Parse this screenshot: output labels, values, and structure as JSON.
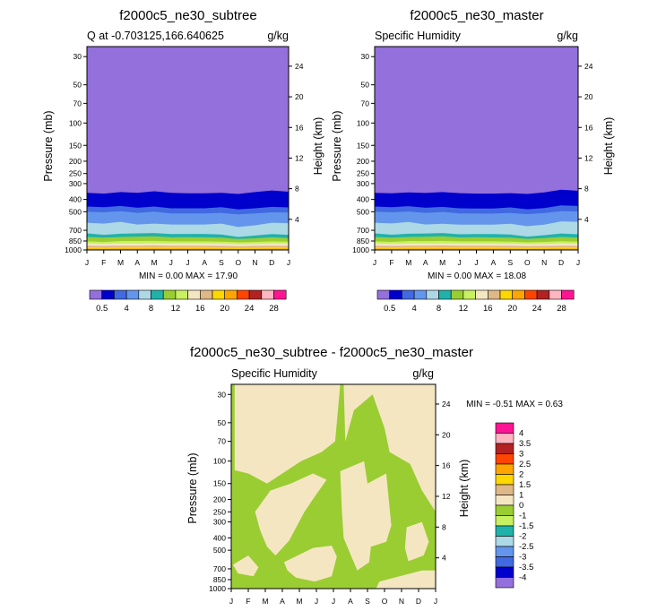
{
  "colors": {
    "frame": "#000000",
    "background": "#ffffff"
  },
  "chart_data": [
    {
      "type": "contour",
      "title": "f2000c5_ne30_subtree",
      "subtitle_left": "Q at -0.703125,166.640625",
      "subtitle_right": "g/kg",
      "ylabel": "Pressure (mb)",
      "ylabel_right": "Height (km)",
      "x": [
        "J",
        "F",
        "M",
        "A",
        "M",
        "J",
        "J",
        "A",
        "S",
        "O",
        "N",
        "D",
        "J"
      ],
      "pressure_ticks": [
        30,
        50,
        70,
        100,
        150,
        200,
        250,
        300,
        400,
        500,
        700,
        850,
        1000
      ],
      "height_ticks": [
        4,
        8,
        12,
        16,
        20,
        24
      ],
      "ylim": [
        1000,
        25
      ],
      "min_max_text": "MIN =   0.00 MAX =  17.90",
      "palette": [
        "#9370db",
        "#0000cd",
        "#4169e1",
        "#6495ed",
        "#add8e6",
        "#20b2aa",
        "#9acd32",
        "#c8f060",
        "#f5e6c2",
        "#deb887",
        "#ffd700",
        "#ffa500",
        "#ff4500",
        "#b22222",
        "#ffb6c1",
        "#ff1493"
      ],
      "bar_labels": [
        "0.5",
        "4",
        "8",
        "12",
        "16",
        "20",
        "24",
        "28"
      ],
      "bands": [
        {
          "color_index": 1,
          "upper_pressure": [
            355,
            360,
            350,
            355,
            345,
            355,
            358,
            358,
            355,
            362,
            350,
            340,
            348
          ]
        },
        {
          "color_index": 2,
          "upper_pressure": [
            455,
            460,
            450,
            465,
            455,
            470,
            470,
            470,
            460,
            480,
            470,
            458,
            462
          ]
        },
        {
          "color_index": 3,
          "upper_pressure": [
            500,
            505,
            495,
            510,
            500,
            515,
            515,
            515,
            510,
            525,
            515,
            505,
            508
          ]
        },
        {
          "color_index": 4,
          "upper_pressure": [
            610,
            620,
            600,
            630,
            620,
            630,
            630,
            630,
            620,
            660,
            640,
            610,
            615
          ]
        },
        {
          "color_index": 5,
          "upper_pressure": [
            740,
            760,
            745,
            740,
            735,
            750,
            748,
            748,
            755,
            790,
            770,
            750,
            760
          ]
        },
        {
          "color_index": 6,
          "upper_pressure": [
            790,
            800,
            790,
            785,
            780,
            795,
            792,
            795,
            800,
            820,
            810,
            795,
            805
          ]
        },
        {
          "color_index": 7,
          "upper_pressure": [
            855,
            865,
            850,
            850,
            848,
            855,
            855,
            855,
            860,
            870,
            865,
            855,
            862
          ]
        },
        {
          "color_index": 8,
          "upper_pressure": [
            890,
            895,
            888,
            888,
            885,
            890,
            890,
            890,
            892,
            900,
            895,
            890,
            893
          ]
        },
        {
          "color_index": 9,
          "upper_pressure": [
            925,
            930,
            925,
            925,
            922,
            925,
            925,
            925,
            928,
            935,
            930,
            925,
            928
          ]
        },
        {
          "color_index": 10,
          "upper_pressure": [
            950,
            955,
            950,
            950,
            948,
            950,
            950,
            950,
            952,
            958,
            955,
            950,
            952
          ]
        },
        {
          "color_index": 11,
          "upper_pressure": [
            975,
            978,
            975,
            975,
            973,
            975,
            975,
            975,
            976,
            980,
            978,
            975,
            976
          ]
        }
      ]
    },
    {
      "type": "contour",
      "title": "f2000c5_ne30_master",
      "subtitle_left": "Specific Humidity",
      "subtitle_right": "g/kg",
      "ylabel": "Pressure (mb)",
      "ylabel_right": "Height (km)",
      "x": [
        "J",
        "F",
        "M",
        "A",
        "M",
        "J",
        "J",
        "A",
        "S",
        "O",
        "N",
        "D",
        "J"
      ],
      "pressure_ticks": [
        30,
        50,
        70,
        100,
        150,
        200,
        250,
        300,
        400,
        500,
        700,
        850,
        1000
      ],
      "height_ticks": [
        4,
        8,
        12,
        16,
        20,
        24
      ],
      "ylim": [
        1000,
        25
      ],
      "min_max_text": "MIN =   0.00 MAX =  18.08",
      "palette": [
        "#9370db",
        "#0000cd",
        "#4169e1",
        "#6495ed",
        "#add8e6",
        "#20b2aa",
        "#9acd32",
        "#c8f060",
        "#f5e6c2",
        "#deb887",
        "#ffd700",
        "#ffa500",
        "#ff4500",
        "#b22222",
        "#ffb6c1",
        "#ff1493"
      ],
      "bar_labels": [
        "0.5",
        "4",
        "8",
        "12",
        "16",
        "20",
        "24",
        "28"
      ],
      "bands": [
        {
          "color_index": 1,
          "upper_pressure": [
            355,
            358,
            352,
            356,
            350,
            357,
            360,
            360,
            357,
            362,
            352,
            335,
            342
          ]
        },
        {
          "color_index": 2,
          "upper_pressure": [
            455,
            460,
            452,
            465,
            458,
            470,
            472,
            472,
            462,
            478,
            468,
            445,
            450
          ]
        },
        {
          "color_index": 3,
          "upper_pressure": [
            500,
            505,
            498,
            510,
            502,
            515,
            517,
            517,
            512,
            522,
            512,
            495,
            498
          ]
        },
        {
          "color_index": 4,
          "upper_pressure": [
            610,
            618,
            602,
            630,
            622,
            632,
            632,
            632,
            622,
            650,
            632,
            595,
            600
          ]
        },
        {
          "color_index": 5,
          "upper_pressure": [
            740,
            758,
            745,
            742,
            736,
            752,
            750,
            750,
            756,
            785,
            765,
            742,
            752
          ]
        },
        {
          "color_index": 6,
          "upper_pressure": [
            790,
            800,
            790,
            786,
            781,
            796,
            793,
            796,
            801,
            818,
            806,
            790,
            800
          ]
        },
        {
          "color_index": 7,
          "upper_pressure": [
            855,
            864,
            850,
            851,
            849,
            856,
            856,
            856,
            861,
            869,
            864,
            854,
            860
          ]
        },
        {
          "color_index": 8,
          "upper_pressure": [
            890,
            895,
            888,
            889,
            886,
            891,
            891,
            891,
            893,
            899,
            895,
            889,
            892
          ]
        },
        {
          "color_index": 9,
          "upper_pressure": [
            925,
            930,
            925,
            925,
            922,
            925,
            925,
            925,
            928,
            934,
            930,
            925,
            928
          ]
        },
        {
          "color_index": 10,
          "upper_pressure": [
            950,
            955,
            950,
            950,
            948,
            950,
            950,
            950,
            952,
            957,
            955,
            950,
            952
          ]
        },
        {
          "color_index": 11,
          "upper_pressure": [
            975,
            978,
            975,
            975,
            973,
            975,
            975,
            975,
            976,
            980,
            978,
            975,
            976
          ]
        }
      ]
    },
    {
      "type": "contour",
      "title": "f2000c5_ne30_subtree - f2000c5_ne30_master",
      "subtitle_left": "Specific Humidity",
      "subtitle_right": "g/kg",
      "ylabel": "Pressure (mb)",
      "ylabel_right": "Height (km)",
      "x": [
        "J",
        "F",
        "M",
        "A",
        "M",
        "J",
        "J",
        "A",
        "S",
        "O",
        "N",
        "D",
        "J"
      ],
      "pressure_ticks": [
        30,
        50,
        70,
        100,
        150,
        200,
        250,
        300,
        400,
        500,
        700,
        850,
        1000
      ],
      "height_ticks": [
        4,
        8,
        12,
        16,
        20,
        24
      ],
      "ylim": [
        1000,
        25
      ],
      "min_max_text": "MIN =  -0.51 MAX =   0.63",
      "background_color": "#9acd32",
      "region_color": "#f5e6c2",
      "diff_palette": [
        "#9370db",
        "#0000cd",
        "#4169e1",
        "#6495ed",
        "#add8e6",
        "#20b2aa",
        "#c8f060",
        "#9acd32",
        "#f5e6c2",
        "#deb887",
        "#ffd700",
        "#ffa500",
        "#ff4500",
        "#b22222",
        "#ffb6c1",
        "#ff1493"
      ],
      "diff_bar_labels": [
        "-4",
        "-3.5",
        "-3",
        "-2.5",
        "-2",
        "-1.5",
        "-1",
        "0",
        "1",
        "1.5",
        "2",
        "2.5",
        "3",
        "3.5",
        "4"
      ],
      "regions_month_pressure": [
        [
          [
            0.2,
            25
          ],
          [
            3,
            25
          ],
          [
            6.4,
            25
          ],
          [
            6.1,
            70
          ],
          [
            5.3,
            85
          ],
          [
            4.1,
            100
          ],
          [
            2.1,
            150
          ],
          [
            1,
            125
          ],
          [
            0.2,
            118
          ]
        ],
        [
          [
            3.8,
            25
          ],
          [
            5,
            25
          ],
          [
            4.5,
            35
          ],
          [
            3.9,
            30
          ]
        ],
        [
          [
            6.6,
            25
          ],
          [
            12,
            25
          ],
          [
            12,
            250
          ],
          [
            11.2,
            170
          ],
          [
            10.5,
            105
          ],
          [
            9.3,
            85
          ],
          [
            9,
            55
          ],
          [
            8.3,
            30
          ],
          [
            7.2,
            40
          ],
          [
            6.7,
            70
          ]
        ],
        [
          [
            1.4,
            250
          ],
          [
            2.3,
            170
          ],
          [
            3.5,
            150
          ],
          [
            4.8,
            125
          ],
          [
            5.6,
            140
          ],
          [
            4.9,
            190
          ],
          [
            4.3,
            250
          ],
          [
            3.4,
            420
          ],
          [
            2.6,
            550
          ],
          [
            2.1,
            470
          ],
          [
            1.7,
            350
          ]
        ],
        [
          [
            6.4,
            120
          ],
          [
            7.8,
            100
          ],
          [
            8,
            150
          ],
          [
            9.1,
            125
          ],
          [
            9.4,
            320
          ],
          [
            9.1,
            430
          ],
          [
            8.2,
            470
          ],
          [
            8.1,
            620
          ],
          [
            7.4,
            720
          ],
          [
            7.1,
            580
          ],
          [
            6.6,
            400
          ],
          [
            6.5,
            250
          ]
        ],
        [
          [
            0.1,
            650
          ],
          [
            1,
            550
          ],
          [
            1.6,
            680
          ],
          [
            1.3,
            800
          ],
          [
            0.4,
            760
          ]
        ],
        [
          [
            3.1,
            620
          ],
          [
            4.8,
            480
          ],
          [
            5.9,
            460
          ],
          [
            6.2,
            560
          ],
          [
            5.9,
            800
          ],
          [
            4.9,
            880
          ],
          [
            3.8,
            820
          ],
          [
            3.3,
            720
          ]
        ],
        [
          [
            8.7,
            880
          ],
          [
            11.2,
            720
          ],
          [
            12,
            720
          ],
          [
            12,
            1000
          ],
          [
            8.5,
            1000
          ]
        ],
        [
          [
            10.3,
            330
          ],
          [
            11.2,
            300
          ],
          [
            11.6,
            430
          ],
          [
            11.3,
            550
          ],
          [
            10.4,
            610
          ],
          [
            10.2,
            480
          ]
        ]
      ]
    }
  ]
}
